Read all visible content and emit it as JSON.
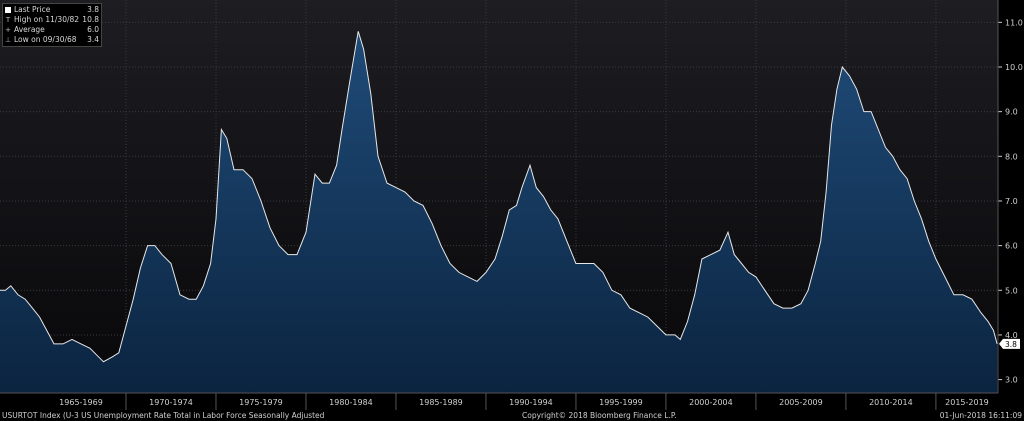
{
  "legend": {
    "rows": [
      {
        "label": "Last Price",
        "value": "3.8",
        "marker": "square"
      },
      {
        "label": "High on 11/30/82",
        "value": "10.8",
        "marker": "T"
      },
      {
        "label": "Average",
        "value": "6.0",
        "marker": "+"
      },
      {
        "label": "Low on 09/30/68",
        "value": "3.4",
        "marker": "⊥"
      }
    ]
  },
  "footer": {
    "left": "USURTOT Index (U-3 US Unemployment Rate Total in Labor Force Seasonally Adjusted",
    "center": "Copyright© 2018 Bloomberg Finance L.P.",
    "right": "01-Jun-2018 16:11:09"
  },
  "colors": {
    "background_top": "#1d1d22",
    "background_bottom": "#08080a",
    "area_top": "#1f4b78",
    "area_bottom": "#0b2440",
    "line": "#e8e8e8",
    "last_price_tag": "#ffffff"
  },
  "chart_data": {
    "type": "area",
    "title": "",
    "xlabel": "",
    "ylabel": "",
    "ylim": [
      2.7,
      11.5
    ],
    "xlim": [
      1963.0,
      2018.45
    ],
    "y_ticks": [
      3.0,
      4.0,
      5.0,
      6.0,
      7.0,
      8.0,
      9.0,
      10.0,
      11.0
    ],
    "x_period_labels": [
      "1965-1969",
      "1970-1974",
      "1975-1979",
      "1980-1984",
      "1985-1989",
      "1990-1994",
      "1995-1999",
      "2000-2004",
      "2005-2009",
      "2010-2014",
      "2015-2019"
    ],
    "x_period_starts": [
      1965,
      1970,
      1975,
      1980,
      1985,
      1990,
      1995,
      2000,
      2005,
      2010,
      2015
    ],
    "last_value_label": "3.8",
    "grid": true,
    "series": [
      {
        "x": [
          1963.0,
          1963.3,
          1963.6,
          1964.0,
          1964.4,
          1964.8,
          1965.2,
          1965.6,
          1966.0,
          1966.5,
          1967.0,
          1967.5,
          1968.0,
          1968.5,
          1968.75,
          1969.2,
          1969.6,
          1970.0,
          1970.4,
          1970.8,
          1971.2,
          1971.6,
          1972.0,
          1972.5,
          1973.0,
          1973.5,
          1973.9,
          1974.3,
          1974.7,
          1975.0,
          1975.3,
          1975.6,
          1976.0,
          1976.5,
          1977.0,
          1977.5,
          1978.0,
          1978.5,
          1979.0,
          1979.5,
          1980.0,
          1980.5,
          1980.9,
          1981.3,
          1981.7,
          1982.0,
          1982.4,
          1982.9,
          1983.2,
          1983.6,
          1984.0,
          1984.5,
          1985.0,
          1985.5,
          1986.0,
          1986.5,
          1987.0,
          1987.5,
          1988.0,
          1988.5,
          1989.0,
          1989.5,
          1990.0,
          1990.5,
          1990.9,
          1991.3,
          1991.7,
          1992.0,
          1992.45,
          1992.8,
          1993.2,
          1993.6,
          1994.0,
          1994.5,
          1995.0,
          1995.5,
          1996.0,
          1996.5,
          1997.0,
          1997.5,
          1998.0,
          1998.5,
          1999.0,
          1999.5,
          2000.0,
          2000.5,
          2000.8,
          2001.2,
          2001.6,
          2002.0,
          2002.5,
          2003.0,
          2003.45,
          2003.8,
          2004.2,
          2004.6,
          2005.0,
          2005.5,
          2006.0,
          2006.5,
          2007.0,
          2007.5,
          2007.9,
          2008.3,
          2008.6,
          2008.9,
          2009.2,
          2009.5,
          2009.8,
          2010.2,
          2010.6,
          2011.0,
          2011.4,
          2011.8,
          2012.2,
          2012.6,
          2013.0,
          2013.4,
          2013.8,
          2014.2,
          2014.6,
          2015.0,
          2015.5,
          2016.0,
          2016.5,
          2017.0,
          2017.5,
          2017.9,
          2018.2,
          2018.4
        ],
        "y": [
          5.0,
          5.0,
          5.1,
          4.9,
          4.8,
          4.6,
          4.4,
          4.1,
          3.8,
          3.8,
          3.9,
          3.8,
          3.7,
          3.5,
          3.4,
          3.5,
          3.6,
          4.2,
          4.8,
          5.5,
          6.0,
          6.0,
          5.8,
          5.6,
          4.9,
          4.8,
          4.8,
          5.1,
          5.6,
          6.6,
          8.6,
          8.4,
          7.7,
          7.7,
          7.5,
          7.0,
          6.4,
          6.0,
          5.8,
          5.8,
          6.3,
          7.6,
          7.4,
          7.4,
          7.8,
          8.6,
          9.6,
          10.8,
          10.4,
          9.4,
          8.0,
          7.4,
          7.3,
          7.2,
          7.0,
          6.9,
          6.5,
          6.0,
          5.6,
          5.4,
          5.3,
          5.2,
          5.4,
          5.7,
          6.2,
          6.8,
          6.9,
          7.3,
          7.8,
          7.3,
          7.1,
          6.8,
          6.6,
          6.1,
          5.6,
          5.6,
          5.6,
          5.4,
          5.0,
          4.9,
          4.6,
          4.5,
          4.4,
          4.2,
          4.0,
          4.0,
          3.9,
          4.3,
          4.9,
          5.7,
          5.8,
          5.9,
          6.3,
          5.8,
          5.6,
          5.4,
          5.3,
          5.0,
          4.7,
          4.6,
          4.6,
          4.7,
          5.0,
          5.6,
          6.1,
          7.2,
          8.7,
          9.5,
          10.0,
          9.8,
          9.5,
          9.0,
          9.0,
          8.6,
          8.2,
          8.0,
          7.7,
          7.5,
          7.0,
          6.6,
          6.1,
          5.7,
          5.3,
          4.9,
          4.9,
          4.8,
          4.5,
          4.3,
          4.1,
          3.8
        ]
      }
    ]
  }
}
